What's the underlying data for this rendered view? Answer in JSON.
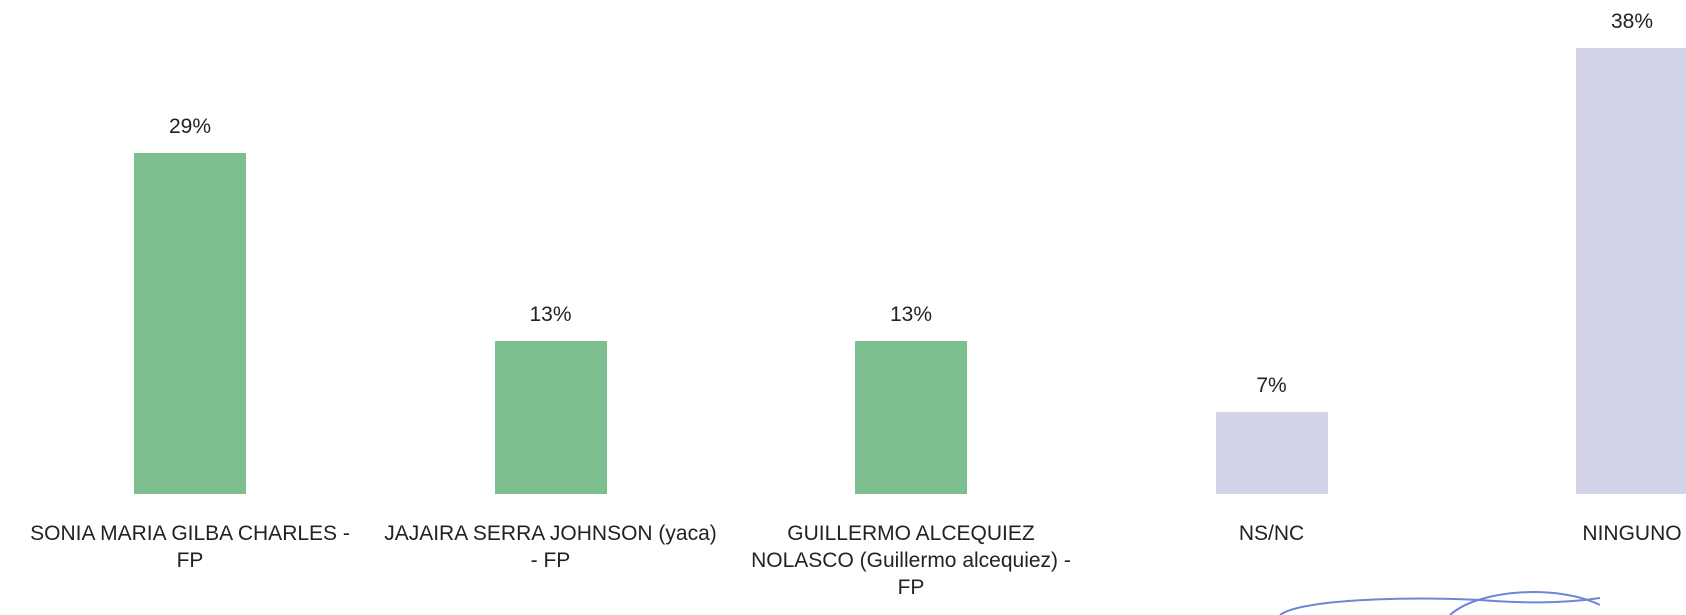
{
  "chart_data": {
    "type": "bar",
    "categories": [
      "SONIA MARIA GILBA CHARLES - FP",
      "JAJAIRA SERRA JOHNSON (yaca) - FP",
      "GUILLERMO ALCEQUIEZ NOLASCO (Guillermo alcequiez) - FP",
      "NS/NC",
      "NINGUNO"
    ],
    "values": [
      29,
      13,
      13,
      7,
      38
    ],
    "value_labels": [
      "29%",
      "13%",
      "13%",
      "7%",
      "38%"
    ],
    "colors": [
      "#7dbf8e",
      "#7dbf8e",
      "#7dbf8e",
      "#d3d3ea",
      "#d3d3ea"
    ]
  }
}
